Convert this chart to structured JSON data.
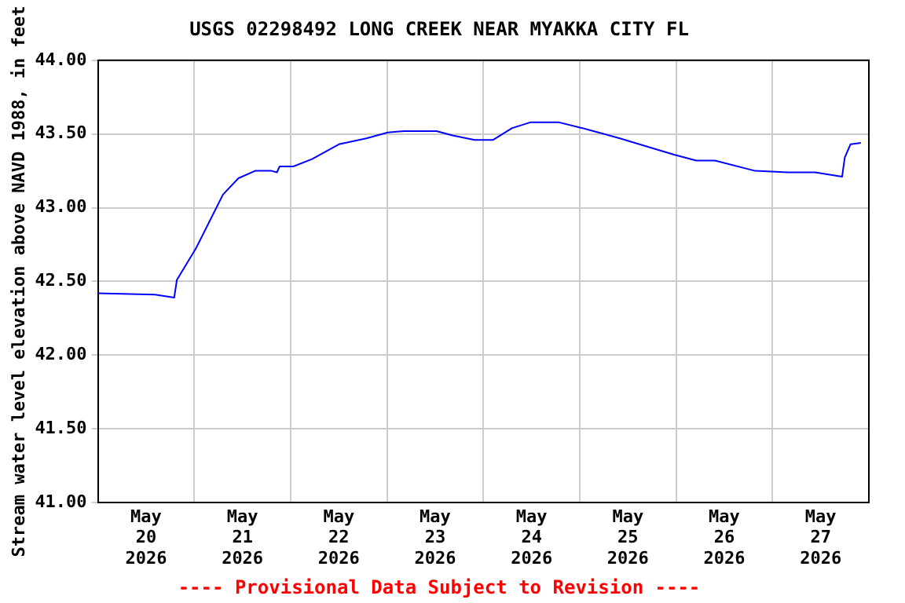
{
  "chart_data": {
    "type": "line",
    "title": "USGS 02298492 LONG CREEK NEAR MYAKKA CITY FL",
    "ylabel": "Stream water level elevation above NAVD 1988, in feet",
    "annotations": [
      "---- Provisional Data Subject to Revision ----"
    ],
    "x": [
      "2026-05-20T00:00",
      "2026-05-20T14:15",
      "2026-05-20T19:00",
      "2026-05-20T19:40",
      "2026-05-21T00:20",
      "2026-05-21T07:10",
      "2026-05-21T11:00",
      "2026-05-21T15:10",
      "2026-05-21T19:15",
      "2026-05-21T20:35",
      "2026-05-21T21:15",
      "2026-05-22T00:40",
      "2026-05-22T05:20",
      "2026-05-22T12:00",
      "2026-05-22T18:50",
      "2026-05-23T00:10",
      "2026-05-23T04:20",
      "2026-05-23T12:20",
      "2026-05-23T16:20",
      "2026-05-23T21:50",
      "2026-05-24T02:25",
      "2026-05-24T07:10",
      "2026-05-24T11:50",
      "2026-05-24T18:40",
      "2026-05-25T00:40",
      "2026-05-25T10:00",
      "2026-05-25T23:30",
      "2026-05-26T05:00",
      "2026-05-26T09:40",
      "2026-05-26T19:40",
      "2026-05-27T03:50",
      "2026-05-27T10:35",
      "2026-05-27T17:20",
      "2026-05-27T18:00",
      "2026-05-27T19:25",
      "2026-05-27T22:00"
    ],
    "series": [
      {
        "color": "#0000ff",
        "values": [
          42.42,
          42.41,
          42.39,
          42.51,
          42.72,
          43.09,
          43.2,
          43.25,
          43.25,
          43.24,
          43.28,
          43.28,
          43.33,
          43.43,
          43.47,
          43.51,
          43.52,
          43.52,
          43.49,
          43.46,
          43.46,
          43.54,
          43.58,
          43.58,
          43.54,
          43.47,
          43.36,
          43.32,
          43.32,
          43.25,
          43.24,
          43.24,
          43.21,
          43.34,
          43.43,
          43.44
        ]
      }
    ],
    "xlim": [
      "2026-05-20T00:00",
      "2026-05-28T00:00"
    ],
    "xticks": [
      {
        "value": "2026-05-20T00:00",
        "label": null
      },
      {
        "value": "2026-05-20T12:00",
        "label": "May 20 2026"
      },
      {
        "value": "2026-05-21T00:00",
        "label": null
      },
      {
        "value": "2026-05-21T12:00",
        "label": "May 21 2026"
      },
      {
        "value": "2026-05-22T00:00",
        "label": null
      },
      {
        "value": "2026-05-22T12:00",
        "label": "May 22 2026"
      },
      {
        "value": "2026-05-23T00:00",
        "label": null
      },
      {
        "value": "2026-05-23T12:00",
        "label": "May 23 2026"
      },
      {
        "value": "2026-05-24T00:00",
        "label": null
      },
      {
        "value": "2026-05-24T12:00",
        "label": "May 24 2026"
      },
      {
        "value": "2026-05-25T00:00",
        "label": null
      },
      {
        "value": "2026-05-25T12:00",
        "label": "May 25 2026"
      },
      {
        "value": "2026-05-26T00:00",
        "label": null
      },
      {
        "value": "2026-05-26T12:00",
        "label": "May 26 2026"
      },
      {
        "value": "2026-05-27T00:00",
        "label": null
      },
      {
        "value": "2026-05-27T12:00",
        "label": "May 27 2026"
      },
      {
        "value": "2026-05-28T00:00",
        "label": null
      }
    ],
    "ylim": [
      41,
      44
    ],
    "yticks": [
      {
        "value": 41,
        "label": "41.00"
      },
      {
        "value": 41.5,
        "label": "41.50"
      },
      {
        "value": 42,
        "label": "42.00"
      },
      {
        "value": 42.5,
        "label": "42.50"
      },
      {
        "value": 43,
        "label": "43.00"
      },
      {
        "value": 43.5,
        "label": "43.50"
      },
      {
        "value": 44,
        "label": "44.00"
      }
    ],
    "grid": true,
    "legend": false,
    "marker": "none",
    "line_style": "solid"
  }
}
